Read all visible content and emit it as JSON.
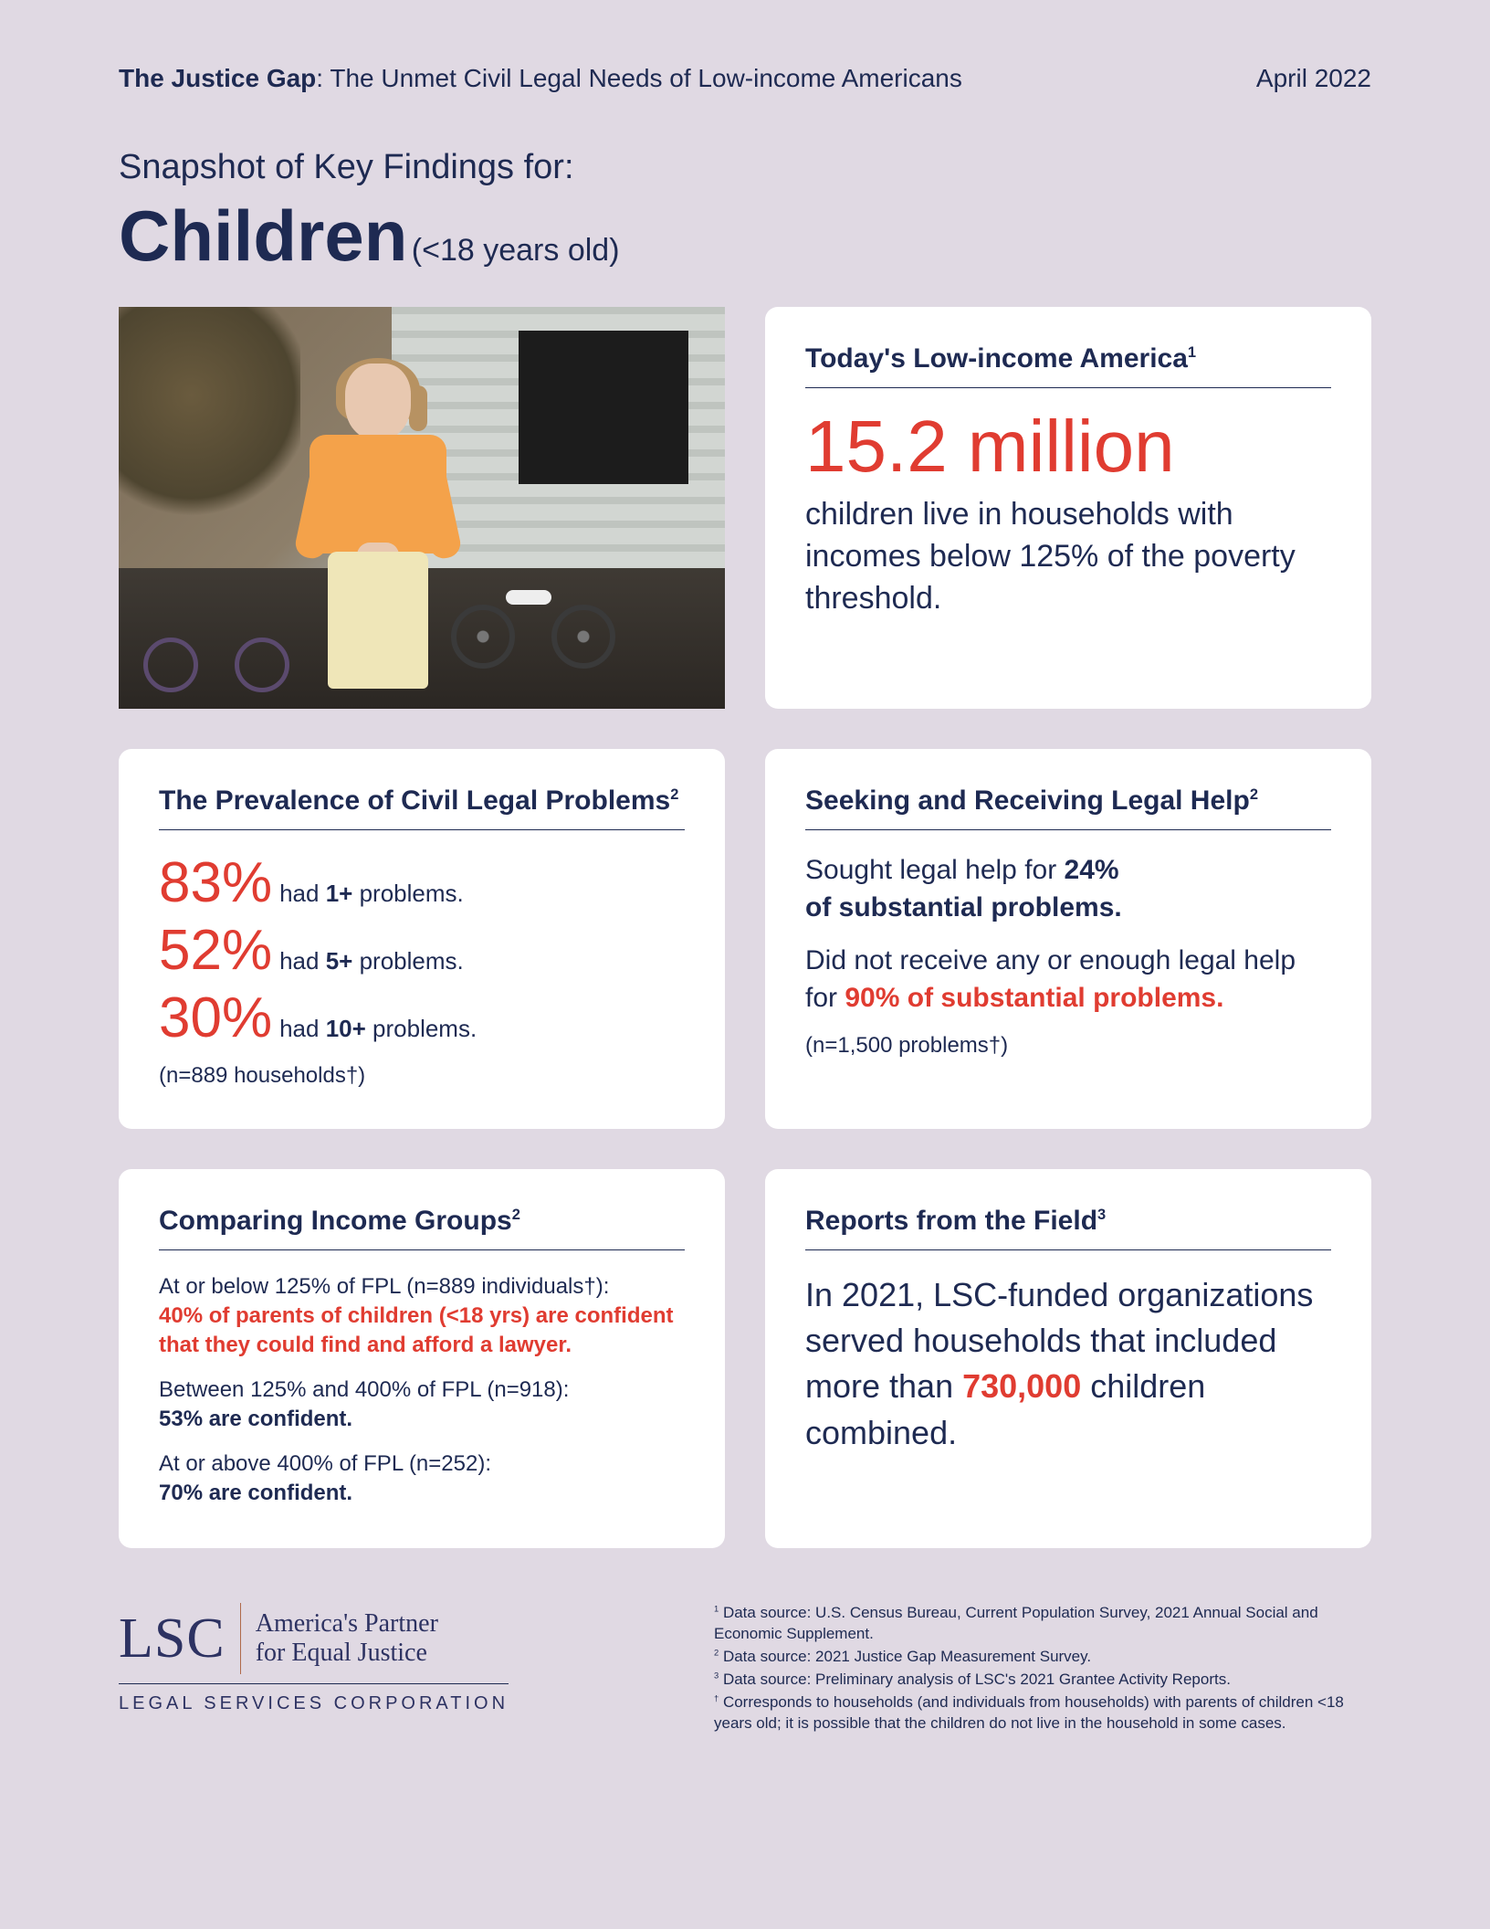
{
  "colors": {
    "bg": "#e0d9e3",
    "card_bg": "#ffffff",
    "navy": "#1e2a52",
    "red": "#e03c31",
    "logo_navy": "#2d3262",
    "logo_rule": "#b06a4a"
  },
  "header": {
    "title_bold": "The Justice Gap",
    "title_rest": ": The Unmet Civil Legal Needs of Low-income Americans",
    "date": "April 2022"
  },
  "snapshot": {
    "intro": "Snapshot of Key Findings for:",
    "main": "Children",
    "sub": "(<18 years old)"
  },
  "card_lowincome": {
    "title": "Today's Low-income America",
    "sup": "1",
    "stat": "15.2 million",
    "desc": "children live in households with incomes below 125% of the poverty threshold."
  },
  "card_prevalence": {
    "title": "The Prevalence of Civil Legal Problems",
    "sup": "2",
    "rows": [
      {
        "pct": "83%",
        "pre": "had ",
        "b": "1+",
        "post": " problems."
      },
      {
        "pct": "52%",
        "pre": "had ",
        "b": "5+",
        "post": " problems."
      },
      {
        "pct": "30%",
        "pre": "had ",
        "b": "10+",
        "post": " problems."
      }
    ],
    "sample": "(n=889 households†)"
  },
  "card_help": {
    "title": "Seeking and Receiving Legal Help",
    "sup": "2",
    "line1_a": "Sought legal help for ",
    "line1_b": "24%",
    "line1_c": " of substantial problems.",
    "line2_a": "Did not receive any or enough legal help for ",
    "line2_red": "90% of substantial problems.",
    "sample": "(n=1,500 problems†)"
  },
  "card_compare": {
    "title": "Comparing Income Groups",
    "sup": "2",
    "g1_intro": "At or below 125% of FPL (n=889 individuals†):",
    "g1_red": "40% of parents of children (<18 yrs) are confident that they could find and afford a lawyer.",
    "g2_intro": "Between 125% and 400% of FPL (n=918):",
    "g2_b": "53% are confident.",
    "g3_intro": "At or above 400% of FPL  (n=252):",
    "g3_b": "70% are confident."
  },
  "card_field": {
    "title": "Reports from the Field",
    "sup": "3",
    "t1": "In 2021, LSC-funded organizations served households that included more than ",
    "red": "730,000",
    "t2": " children combined."
  },
  "logo": {
    "lsc": "LSC",
    "tag1": "America's Partner",
    "tag2": "for Equal Justice",
    "sub": "LEGAL SERVICES CORPORATION"
  },
  "footnotes": {
    "f1": "Data source: U.S. Census Bureau, Current Population Survey, 2021 Annual Social and Economic Supplement.",
    "f2": "Data source: 2021 Justice Gap Measurement Survey.",
    "f3": "Data source: Preliminary analysis of LSC's 2021 Grantee Activity Reports.",
    "ft": "Corresponds to households (and individuals from households) with parents of children <18 years old; it is possible that the children do not live in the household in some cases."
  }
}
